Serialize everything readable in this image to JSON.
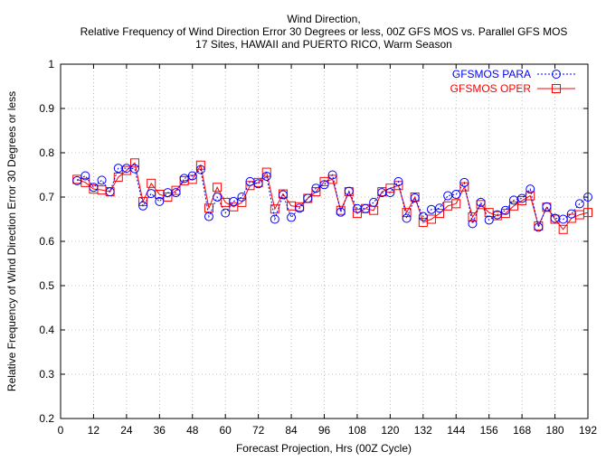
{
  "chart_data": {
    "type": "line",
    "title": [
      "Wind Direction,",
      "Relative Frequency of Wind Direction Error 30 Degrees or less, 00Z GFS MOS vs. Parallel GFS MOS",
      "17 Sites, HAWAII and PUERTO RICO, Warm Season"
    ],
    "xlabel": "Forecast Projection, Hrs (00Z Cycle)",
    "ylabel": "Relative Frequency of Wind Direction Error 30 Degrees or less",
    "xlim": [
      0,
      192
    ],
    "ylim": [
      0.2,
      1.0
    ],
    "xticks": [
      0,
      12,
      24,
      36,
      48,
      60,
      72,
      84,
      96,
      108,
      120,
      132,
      144,
      156,
      168,
      180,
      192
    ],
    "yticks": [
      "0.2",
      "0.3",
      "0.4",
      "0.5",
      "0.6",
      "0.7",
      "0.8",
      "0.9",
      "1"
    ],
    "grid": true,
    "legend_position": "top-right",
    "x": [
      6,
      9,
      12,
      15,
      18,
      21,
      24,
      27,
      30,
      33,
      36,
      39,
      42,
      45,
      48,
      51,
      54,
      57,
      60,
      63,
      66,
      69,
      72,
      75,
      78,
      81,
      84,
      87,
      90,
      93,
      96,
      99,
      102,
      105,
      108,
      111,
      114,
      117,
      120,
      123,
      126,
      129,
      132,
      135,
      138,
      141,
      144,
      147,
      150,
      153,
      156,
      159,
      162,
      165,
      168,
      171,
      174,
      177,
      180,
      183,
      186,
      189,
      192
    ],
    "series": [
      {
        "name": "GFSMOS PARA",
        "color": "#0000ff",
        "line": "dotted",
        "marker": "circle",
        "values": [
          0.737,
          0.748,
          0.722,
          0.738,
          0.712,
          0.765,
          0.765,
          0.764,
          0.68,
          0.708,
          0.69,
          0.71,
          0.71,
          0.742,
          0.748,
          0.762,
          0.656,
          0.7,
          0.664,
          0.69,
          0.7,
          0.735,
          0.73,
          0.747,
          0.65,
          0.705,
          0.654,
          0.675,
          0.697,
          0.72,
          0.728,
          0.75,
          0.666,
          0.713,
          0.674,
          0.674,
          0.688,
          0.71,
          0.71,
          0.735,
          0.652,
          0.698,
          0.656,
          0.672,
          0.675,
          0.703,
          0.706,
          0.733,
          0.64,
          0.688,
          0.648,
          0.66,
          0.67,
          0.693,
          0.697,
          0.718,
          0.632,
          0.678,
          0.652,
          0.65,
          0.662,
          0.685,
          0.7
        ]
      },
      {
        "name": "GFSMOS OPER",
        "color": "#ff0000",
        "line": "solid",
        "marker": "square",
        "values": [
          0.74,
          0.733,
          0.718,
          0.716,
          0.712,
          0.745,
          0.76,
          0.777,
          0.69,
          0.731,
          0.706,
          0.7,
          0.715,
          0.737,
          0.74,
          0.772,
          0.675,
          0.722,
          0.688,
          0.678,
          0.688,
          0.726,
          0.733,
          0.756,
          0.673,
          0.707,
          0.68,
          0.678,
          0.697,
          0.712,
          0.735,
          0.74,
          0.67,
          0.712,
          0.663,
          0.674,
          0.67,
          0.712,
          0.72,
          0.726,
          0.665,
          0.7,
          0.643,
          0.65,
          0.663,
          0.68,
          0.685,
          0.723,
          0.655,
          0.683,
          0.665,
          0.658,
          0.663,
          0.68,
          0.692,
          0.703,
          0.635,
          0.677,
          0.65,
          0.627,
          0.652,
          0.66,
          0.665
        ]
      }
    ]
  }
}
